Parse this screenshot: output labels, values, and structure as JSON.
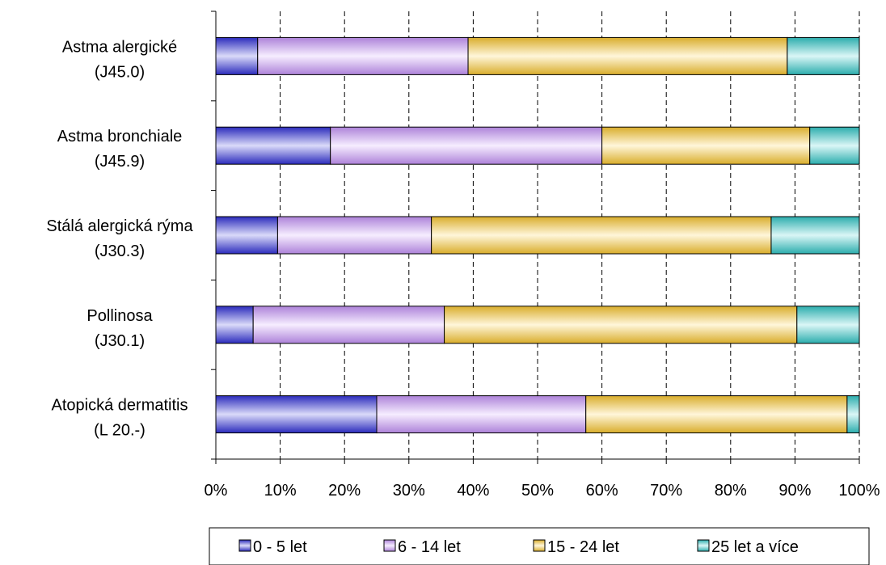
{
  "chart_data": {
    "type": "bar",
    "orientation": "horizontal",
    "stacked": "percent",
    "categories": [
      [
        "Astma alergické",
        "(J45.0)"
      ],
      [
        "Astma bronchiale",
        "(J45.9)"
      ],
      [
        "Stálá alergická rýma",
        "(J30.3)"
      ],
      [
        "Pollinosa",
        "(J30.1)"
      ],
      [
        "Atopická dermatitis",
        "(L 20.-)"
      ]
    ],
    "series": [
      {
        "name": "0 - 5 let",
        "values": [
          6.5,
          17.8,
          9.6,
          5.8,
          25.0
        ],
        "color": "#3333dd"
      },
      {
        "name": "6 - 14 let",
        "values": [
          32.7,
          42.2,
          23.9,
          29.7,
          32.5
        ],
        "color": "#cc99ff"
      },
      {
        "name": "15 - 24 let",
        "values": [
          49.6,
          32.3,
          52.8,
          54.8,
          40.6
        ],
        "color": "#ffcc33"
      },
      {
        "name": "25 let a více",
        "values": [
          11.2,
          7.7,
          13.7,
          9.7,
          1.9
        ],
        "color": "#33cccc"
      }
    ],
    "xlim": [
      0,
      100
    ],
    "xticks": [
      "0%",
      "10%",
      "20%",
      "30%",
      "40%",
      "50%",
      "60%",
      "70%",
      "80%",
      "90%",
      "100%"
    ],
    "grid": "vertical-dashed",
    "legend": "bottom",
    "title": "",
    "xlabel": "",
    "ylabel": ""
  }
}
